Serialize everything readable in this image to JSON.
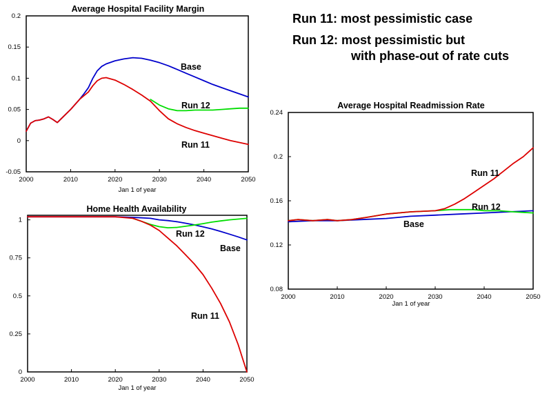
{
  "notes": {
    "line1": "Run 11:  most pessimistic case",
    "line2": "Run 12:  most pessimistic but",
    "line3": "with phase-out of rate cuts"
  },
  "colors": {
    "base": "#0000cc",
    "run12": "#00dd00",
    "run11": "#dd0000"
  },
  "chart_data": [
    {
      "id": "margin",
      "type": "line",
      "title": "Average Hospital Facility Margin",
      "xlabel": "Jan 1 of year",
      "ylabel": "",
      "xlim": [
        2000,
        2050
      ],
      "ylim": [
        -0.05,
        0.2
      ],
      "xticks": [
        "2000",
        "2010",
        "2020",
        "2030",
        "2040",
        "2050"
      ],
      "yticks": [
        "0.2",
        "0.15",
        "0.1",
        "0.05",
        "0",
        "-0.05"
      ],
      "grid": false,
      "labels": [
        "Base",
        "Run 12",
        "Run 11"
      ],
      "series": [
        {
          "name": "Base",
          "color": "#0000cc",
          "x": [
            2000,
            2001,
            2002,
            2003,
            2004,
            2005,
            2006,
            2007,
            2008,
            2010,
            2012,
            2013,
            2014,
            2015,
            2016,
            2017,
            2018,
            2020,
            2022,
            2024,
            2026,
            2028,
            2030,
            2032,
            2034,
            2036,
            2038,
            2040,
            2042,
            2044,
            2046,
            2048,
            2050
          ],
          "y": [
            0.015,
            0.028,
            0.032,
            0.033,
            0.035,
            0.038,
            0.034,
            0.029,
            0.036,
            0.05,
            0.066,
            0.075,
            0.085,
            0.1,
            0.112,
            0.119,
            0.123,
            0.128,
            0.131,
            0.133,
            0.132,
            0.129,
            0.125,
            0.12,
            0.114,
            0.108,
            0.102,
            0.096,
            0.09,
            0.085,
            0.08,
            0.075,
            0.07
          ]
        },
        {
          "name": "Run 12",
          "color": "#00dd00",
          "x": [
            2028,
            2030,
            2032,
            2034,
            2036,
            2038,
            2040,
            2042,
            2044,
            2046,
            2048,
            2050
          ],
          "y": [
            0.066,
            0.057,
            0.051,
            0.048,
            0.048,
            0.049,
            0.049,
            0.049,
            0.05,
            0.051,
            0.052,
            0.052
          ]
        },
        {
          "name": "Run 11",
          "color": "#dd0000",
          "x": [
            2000,
            2001,
            2002,
            2003,
            2004,
            2005,
            2006,
            2007,
            2008,
            2010,
            2012,
            2013,
            2014,
            2015,
            2016,
            2017,
            2018,
            2020,
            2022,
            2024,
            2026,
            2028,
            2030,
            2032,
            2034,
            2036,
            2038,
            2040,
            2042,
            2044,
            2046,
            2048,
            2050
          ],
          "y": [
            0.015,
            0.028,
            0.032,
            0.033,
            0.035,
            0.038,
            0.034,
            0.029,
            0.036,
            0.05,
            0.066,
            0.072,
            0.078,
            0.088,
            0.096,
            0.1,
            0.101,
            0.097,
            0.09,
            0.082,
            0.073,
            0.063,
            0.048,
            0.035,
            0.027,
            0.021,
            0.016,
            0.012,
            0.008,
            0.004,
            0.0,
            -0.003,
            -0.006
          ]
        }
      ]
    },
    {
      "id": "readmission",
      "type": "line",
      "title": "Average Hospital Readmission Rate",
      "xlabel": "Jan 1 of year",
      "ylabel": "",
      "xlim": [
        2000,
        2050
      ],
      "ylim": [
        0.08,
        0.24
      ],
      "xticks": [
        "2000",
        "2010",
        "2020",
        "2030",
        "2040",
        "2050"
      ],
      "yticks": [
        "0.24",
        "0.2",
        "0.16",
        "0.12",
        "0.08"
      ],
      "grid": false,
      "labels": [
        "Run 11",
        "Run 12",
        "Base"
      ],
      "series": [
        {
          "name": "Base",
          "color": "#0000cc",
          "x": [
            2000,
            2005,
            2010,
            2015,
            2020,
            2025,
            2030,
            2035,
            2040,
            2045,
            2050
          ],
          "y": [
            0.141,
            0.142,
            0.142,
            0.143,
            0.144,
            0.146,
            0.147,
            0.148,
            0.149,
            0.15,
            0.151
          ]
        },
        {
          "name": "Run 12",
          "color": "#00dd00",
          "x": [
            2000,
            2002,
            2005,
            2008,
            2010,
            2013,
            2016,
            2020,
            2025,
            2030,
            2033,
            2035,
            2038,
            2040,
            2043,
            2046,
            2050
          ],
          "y": [
            0.142,
            0.143,
            0.142,
            0.143,
            0.142,
            0.143,
            0.145,
            0.148,
            0.15,
            0.151,
            0.152,
            0.152,
            0.152,
            0.151,
            0.151,
            0.15,
            0.149
          ]
        },
        {
          "name": "Run 11",
          "color": "#dd0000",
          "x": [
            2000,
            2002,
            2005,
            2008,
            2010,
            2013,
            2016,
            2020,
            2025,
            2030,
            2032,
            2034,
            2036,
            2038,
            2040,
            2042,
            2044,
            2046,
            2048,
            2050
          ],
          "y": [
            0.142,
            0.143,
            0.142,
            0.143,
            0.142,
            0.143,
            0.145,
            0.148,
            0.15,
            0.151,
            0.153,
            0.157,
            0.162,
            0.168,
            0.174,
            0.18,
            0.187,
            0.194,
            0.2,
            0.208
          ]
        }
      ]
    },
    {
      "id": "homehealth",
      "type": "line",
      "title": "Home Health Availability",
      "xlabel": "Jan 1 of year",
      "ylabel": "",
      "xlim": [
        2000,
        2050
      ],
      "ylim": [
        0,
        1.03
      ],
      "xticks": [
        "2000",
        "2010",
        "2020",
        "2030",
        "2040",
        "2050"
      ],
      "yticks": [
        "1",
        "0.75",
        "0.5",
        "0.25",
        "0"
      ],
      "grid": false,
      "labels": [
        "Run 12",
        "Base",
        "Run 11"
      ],
      "series": [
        {
          "name": "Base",
          "color": "#0000cc",
          "x": [
            2000,
            2010,
            2020,
            2025,
            2028,
            2030,
            2032,
            2034,
            2036,
            2038,
            2040,
            2042,
            2044,
            2046,
            2048,
            2050
          ],
          "y": [
            1.02,
            1.02,
            1.02,
            1.015,
            1.01,
            1.0,
            0.995,
            0.988,
            0.978,
            0.967,
            0.954,
            0.94,
            0.924,
            0.906,
            0.888,
            0.868
          ]
        },
        {
          "name": "Run 12",
          "color": "#00dd00",
          "x": [
            2024,
            2026,
            2028,
            2030,
            2032,
            2034,
            2036,
            2038,
            2040,
            2042,
            2044,
            2046,
            2048,
            2050
          ],
          "y": [
            1.01,
            0.99,
            0.97,
            0.955,
            0.948,
            0.95,
            0.958,
            0.966,
            0.975,
            0.985,
            0.993,
            1.0,
            1.005,
            1.01
          ]
        },
        {
          "name": "Run 11",
          "color": "#dd0000",
          "x": [
            2000,
            2010,
            2020,
            2024,
            2026,
            2028,
            2030,
            2032,
            2034,
            2036,
            2038,
            2040,
            2042,
            2044,
            2046,
            2048,
            2049,
            2050
          ],
          "y": [
            1.02,
            1.02,
            1.02,
            1.01,
            0.99,
            0.965,
            0.93,
            0.88,
            0.83,
            0.77,
            0.71,
            0.64,
            0.55,
            0.45,
            0.33,
            0.18,
            0.09,
            0.0
          ]
        }
      ]
    }
  ]
}
